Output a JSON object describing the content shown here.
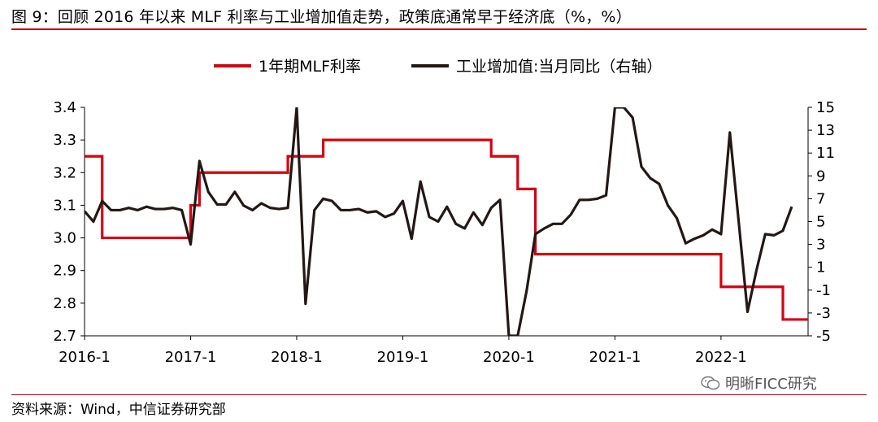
{
  "title": "图 9：回顾 2016 年以来 MLF 利率与工业增加值走势，政策底通常早于经济底（%，%）",
  "source": "资料来源：Wind，中信证券研究部",
  "watermark": "明晰FICC研究",
  "colors": {
    "mlf": "#d7000f",
    "ip": "#231815",
    "rule": "#c00000"
  },
  "chart_data": {
    "type": "line",
    "x_type": "month",
    "x_start": "2016-01",
    "x_ticks": [
      "2016-1",
      "2017-1",
      "2018-1",
      "2019-1",
      "2020-1",
      "2021-1",
      "2022-1"
    ],
    "xlim": [
      "2016-01",
      "2022-10"
    ],
    "y_left": {
      "ylim": [
        2.7,
        3.4
      ],
      "ticks": [
        "3.4",
        "3.3",
        "3.2",
        "3.1",
        "3.0",
        "2.9",
        "2.8",
        "2.7"
      ]
    },
    "y_right": {
      "ylim": [
        -5,
        15
      ],
      "ticks": [
        "15",
        "13",
        "11",
        "9",
        "7",
        "5",
        "3",
        "1",
        "-1",
        "-3",
        "-5"
      ]
    },
    "legend_position": "top",
    "series": [
      {
        "name": "1年期MLF利率",
        "axis": "left",
        "step": true,
        "points": [
          [
            "2016-01",
            3.25
          ],
          [
            "2016-03",
            3.0
          ],
          [
            "2017-01",
            3.1
          ],
          [
            "2017-02",
            3.2
          ],
          [
            "2017-12",
            3.25
          ],
          [
            "2018-04",
            3.3
          ],
          [
            "2019-11",
            3.25
          ],
          [
            "2020-02",
            3.15
          ],
          [
            "2020-04",
            2.95
          ],
          [
            "2022-01",
            2.85
          ],
          [
            "2022-08",
            2.75
          ],
          [
            "2022-10",
            2.75
          ]
        ]
      },
      {
        "name": "工业增加值:当月同比（右轴）",
        "axis": "right",
        "step": false,
        "points": [
          [
            "2016-01",
            5.9
          ],
          [
            "2016-02",
            5.0
          ],
          [
            "2016-03",
            6.8
          ],
          [
            "2016-04",
            6.0
          ],
          [
            "2016-05",
            6.0
          ],
          [
            "2016-06",
            6.2
          ],
          [
            "2016-07",
            6.0
          ],
          [
            "2016-08",
            6.3
          ],
          [
            "2016-09",
            6.1
          ],
          [
            "2016-10",
            6.1
          ],
          [
            "2016-11",
            6.2
          ],
          [
            "2016-12",
            6.0
          ],
          [
            "2017-01",
            3.0
          ],
          [
            "2017-02",
            10.3
          ],
          [
            "2017-03",
            7.6
          ],
          [
            "2017-04",
            6.5
          ],
          [
            "2017-05",
            6.5
          ],
          [
            "2017-06",
            7.6
          ],
          [
            "2017-07",
            6.4
          ],
          [
            "2017-08",
            6.0
          ],
          [
            "2017-09",
            6.6
          ],
          [
            "2017-10",
            6.2
          ],
          [
            "2017-11",
            6.1
          ],
          [
            "2017-12",
            6.2
          ],
          [
            "2018-01",
            15.0
          ],
          [
            "2018-02",
            -2.2
          ],
          [
            "2018-03",
            6.0
          ],
          [
            "2018-04",
            7.0
          ],
          [
            "2018-05",
            6.8
          ],
          [
            "2018-06",
            6.0
          ],
          [
            "2018-07",
            6.0
          ],
          [
            "2018-08",
            6.1
          ],
          [
            "2018-09",
            5.8
          ],
          [
            "2018-10",
            5.9
          ],
          [
            "2018-11",
            5.4
          ],
          [
            "2018-12",
            5.7
          ],
          [
            "2019-01",
            6.8
          ],
          [
            "2019-02",
            3.5
          ],
          [
            "2019-03",
            8.5
          ],
          [
            "2019-04",
            5.4
          ],
          [
            "2019-05",
            5.0
          ],
          [
            "2019-06",
            6.3
          ],
          [
            "2019-07",
            4.8
          ],
          [
            "2019-08",
            4.4
          ],
          [
            "2019-09",
            5.8
          ],
          [
            "2019-10",
            4.7
          ],
          [
            "2019-11",
            6.2
          ],
          [
            "2019-12",
            6.9
          ],
          [
            "2020-01",
            -5.0
          ],
          [
            "2020-02",
            -5.0
          ],
          [
            "2020-03",
            -1.1
          ],
          [
            "2020-04",
            3.9
          ],
          [
            "2020-05",
            4.4
          ],
          [
            "2020-06",
            4.8
          ],
          [
            "2020-07",
            4.8
          ],
          [
            "2020-08",
            5.6
          ],
          [
            "2020-09",
            6.9
          ],
          [
            "2020-10",
            6.9
          ],
          [
            "2020-11",
            7.0
          ],
          [
            "2020-12",
            7.3
          ],
          [
            "2021-01",
            15.0
          ],
          [
            "2021-02",
            15.0
          ],
          [
            "2021-03",
            14.1
          ],
          [
            "2021-04",
            9.8
          ],
          [
            "2021-05",
            8.8
          ],
          [
            "2021-06",
            8.3
          ],
          [
            "2021-07",
            6.4
          ],
          [
            "2021-08",
            5.3
          ],
          [
            "2021-09",
            3.1
          ],
          [
            "2021-10",
            3.5
          ],
          [
            "2021-11",
            3.8
          ],
          [
            "2021-12",
            4.3
          ],
          [
            "2022-01",
            3.9
          ],
          [
            "2022-02",
            12.8
          ],
          [
            "2022-03",
            5.0
          ],
          [
            "2022-04",
            -2.9
          ],
          [
            "2022-05",
            0.7
          ],
          [
            "2022-06",
            3.9
          ],
          [
            "2022-07",
            3.8
          ],
          [
            "2022-08",
            4.2
          ],
          [
            "2022-09",
            6.3
          ]
        ]
      }
    ]
  }
}
